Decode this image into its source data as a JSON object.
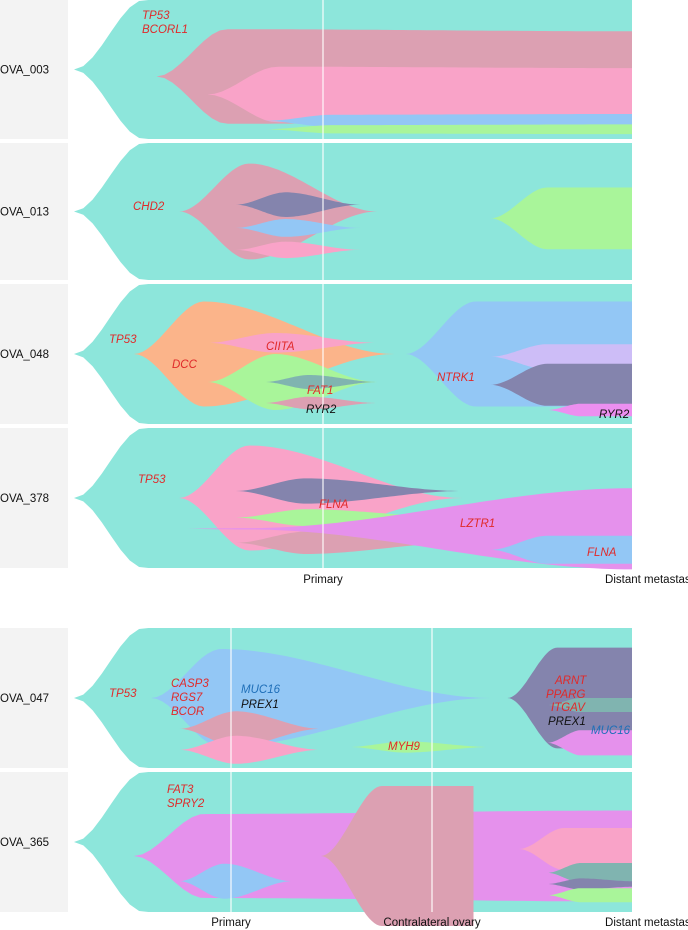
{
  "chart_data": {
    "type": "fishplot",
    "title": "",
    "groups": [
      {
        "timepoints": [
          "Primary",
          "Distant metastasis"
        ],
        "cases": [
          {
            "id": "OVA_003",
            "clones": [
              {
                "color": "#8de6db",
                "t": [
                  0.0,
                  1.0
                ],
                "v": [
                  100,
                  100
                ]
              },
              {
                "color": "#dca0b2",
                "t": [
                  0.16,
                  1.0
                ],
                "v": [
                  68,
                  65
                ]
              },
              {
                "color": "#f9a3c8",
                "t": [
                  0.25,
                  1.0
                ],
                "v": [
                  40,
                  38
                ]
              },
              {
                "color": "#93c7f5",
                "t": [
                  0.35,
                  1.0
                ],
                "v": [
                  9,
                  10
                ]
              },
              {
                "color": "#a9f59a",
                "t": [
                  0.35,
                  1.0
                ],
                "v": [
                  6,
                  7
                ]
              }
            ],
            "labels": [
              {
                "text": "TP53",
                "color": "#e02a2a"
              },
              {
                "text": "BCORL1",
                "color": "#e02a2a"
              }
            ]
          },
          {
            "id": "OVA_013",
            "clones": [
              {
                "color": "#8de6db",
                "t": [
                  0.0,
                  1.0
                ],
                "v": [
                  100,
                  100
                ]
              },
              {
                "color": "#dca0b2",
                "t": [
                  0.2,
                  0.55
                ],
                "v": [
                  70,
                  0
                ]
              },
              {
                "color": "#8484ad",
                "t": [
                  0.3,
                  0.52
                ],
                "v": [
                  18,
                  0
                ]
              },
              {
                "color": "#93c7f5",
                "t": [
                  0.3,
                  0.52
                ],
                "v": [
                  13,
                  0
                ]
              },
              {
                "color": "#f9a3c8",
                "t": [
                  0.3,
                  0.52
                ],
                "v": [
                  12,
                  0
                ]
              },
              {
                "color": "#a9f59a",
                "t": [
                  0.75,
                  1.0
                ],
                "v": [
                  0,
                  45
                ]
              }
            ],
            "labels": [
              {
                "text": "CHD2",
                "color": "#e02a2a"
              }
            ]
          },
          {
            "id": "OVA_048",
            "clones": [
              {
                "color": "#8de6db",
                "t": [
                  0.0,
                  1.0
                ],
                "v": [
                  100,
                  100
                ]
              },
              {
                "color": "#fbb48a",
                "t": [
                  0.12,
                  0.58
                ],
                "v": [
                  75,
                  0
                ]
              },
              {
                "color": "#f9a3c8",
                "t": [
                  0.25,
                  0.55
                ],
                "v": [
                  14,
                  0
                ]
              },
              {
                "color": "#a9f59a",
                "t": [
                  0.25,
                  0.55
                ],
                "v": [
                  40,
                  0
                ]
              },
              {
                "color": "#80b4b0",
                "t": [
                  0.35,
                  0.55
                ],
                "v": [
                  10,
                  0
                ]
              },
              {
                "color": "#dca0b2",
                "t": [
                  0.35,
                  0.55
                ],
                "v": [
                  9,
                  0
                ]
              },
              {
                "color": "#93c7f5",
                "t": [
                  0.6,
                  1.0
                ],
                "v": [
                  0,
                  75
                ]
              },
              {
                "color": "#cdbdf7",
                "t": [
                  0.75,
                  1.0
                ],
                "v": [
                  0,
                  18
                ]
              },
              {
                "color": "#8484ad",
                "t": [
                  0.75,
                  1.0
                ],
                "v": [
                  0,
                  30
                ]
              },
              {
                "color": "#ec8ff0",
                "t": [
                  0.85,
                  1.0
                ],
                "v": [
                  0,
                  9
                ]
              }
            ],
            "labels": [
              {
                "text": "TP53",
                "color": "#e02a2a"
              },
              {
                "text": "DCC",
                "color": "#e02a2a"
              },
              {
                "text": "CIITA",
                "color": "#e02a2a"
              },
              {
                "text": "FAT1",
                "color": "#e02a2a"
              },
              {
                "text": "RYR2",
                "color": "#111111"
              },
              {
                "text": "NTRK1",
                "color": "#e02a2a"
              },
              {
                "text": "RYR2",
                "color": "#111111"
              }
            ]
          },
          {
            "id": "OVA_378",
            "clones": [
              {
                "color": "#8de6db",
                "t": [
                  0.0,
                  1.0
                ],
                "v": [
                  100,
                  100
                ]
              },
              {
                "color": "#f9a3c8",
                "t": [
                  0.2,
                  0.7
                ],
                "v": [
                  75,
                  0
                ]
              },
              {
                "color": "#8484ad",
                "t": [
                  0.3,
                  0.7
                ],
                "v": [
                  18,
                  0
                ]
              },
              {
                "color": "#a9f59a",
                "t": [
                  0.3,
                  0.7
                ],
                "v": [
                  12,
                  0
                ]
              },
              {
                "color": "#dca0b2",
                "t": [
                  0.3,
                  0.7
                ],
                "v": [
                  16,
                  0
                ]
              },
              {
                "color": "#e591ec",
                "t": [
                  0.2,
                  1.0
                ],
                "v": [
                  1,
                  58
                ]
              },
              {
                "color": "#93c7f5",
                "t": [
                  0.75,
                  1.0
                ],
                "v": [
                  0,
                  20
                ]
              }
            ],
            "labels": [
              {
                "text": "TP53",
                "color": "#e02a2a"
              },
              {
                "text": "FLNA",
                "color": "#e02a2a"
              },
              {
                "text": "LZTR1",
                "color": "#e02a2a"
              },
              {
                "text": "FLNA",
                "color": "#e02a2a"
              }
            ]
          }
        ]
      },
      {
        "timepoints": [
          "Primary",
          "Contralateral ovary",
          "Distant metastasis"
        ],
        "cases": [
          {
            "id": "OVA_047",
            "clones": [
              {
                "color": "#8de6db",
                "t": [
                  0.0,
                  1.0
                ],
                "v": [
                  100,
                  100
                ]
              },
              {
                "color": "#93c7f5",
                "t": [
                  0.15,
                  0.75
                ],
                "v": [
                  70,
                  0
                ]
              },
              {
                "color": "#dca0b2",
                "t": [
                  0.2,
                  0.45
                ],
                "v": [
                  25,
                  0
                ]
              },
              {
                "color": "#f9a3c8",
                "t": [
                  0.2,
                  0.45
                ],
                "v": [
                  20,
                  0
                ]
              },
              {
                "color": "#a9f59a",
                "t": [
                  0.5,
                  0.75
                ],
                "v": [
                  0,
                  0
                ]
              },
              {
                "color": "#8484ad",
                "t": [
                  0.78,
                  1.0
                ],
                "v": [
                  0,
                  72
                ]
              },
              {
                "color": "#80b4b0",
                "t": [
                  0.85,
                  1.0
                ],
                "v": [
                  0,
                  10
                ]
              },
              {
                "color": "#e591ec",
                "t": [
                  0.85,
                  1.0
                ],
                "v": [
                  0,
                  18
                ]
              }
            ],
            "labels": [
              {
                "text": "TP53",
                "color": "#e02a2a"
              },
              {
                "text": "CASP3",
                "color": "#e02a2a"
              },
              {
                "text": "RGS7",
                "color": "#e02a2a"
              },
              {
                "text": "BCOR",
                "color": "#e02a2a"
              },
              {
                "text": "MUC16",
                "color": "#1f6fb8"
              },
              {
                "text": "PREX1",
                "color": "#111111"
              },
              {
                "text": "MYH9",
                "color": "#e02a2a"
              },
              {
                "text": "ARNT",
                "color": "#e02a2a"
              },
              {
                "text": "PPARG",
                "color": "#e02a2a"
              },
              {
                "text": "ITGAV",
                "color": "#e02a2a"
              },
              {
                "text": "PREX1",
                "color": "#111111"
              },
              {
                "text": "MUC16",
                "color": "#1f6fb8"
              }
            ]
          },
          {
            "id": "OVA_365",
            "clones": [
              {
                "color": "#8de6db",
                "t": [
                  0.0,
                  1.0
                ],
                "v": [
                  100,
                  100
                ]
              },
              {
                "color": "#e591ec",
                "t": [
                  0.12,
                  1.0
                ],
                "v": [
                  60,
                  65
                ]
              },
              {
                "color": "#93c7f5",
                "t": [
                  0.2,
                  0.4
                ],
                "v": [
                  25,
                  0
                ]
              },
              {
                "color": "#dca0b2",
                "t": [
                  0.45,
                  0.72
                ],
                "v": [
                  0,
                  100
                ]
              },
              {
                "color": "#f9a3c8",
                "t": [
                  0.8,
                  1.0
                ],
                "v": [
                  0,
                  30
                ]
              },
              {
                "color": "#80b4b0",
                "t": [
                  0.85,
                  1.0
                ],
                "v": [
                  0,
                  14
                ]
              },
              {
                "color": "#8484ad",
                "t": [
                  0.85,
                  1.0
                ],
                "v": [
                  0,
                  4
                ]
              },
              {
                "color": "#a9f59a",
                "t": [
                  0.85,
                  1.0
                ],
                "v": [
                  0,
                  10
                ]
              }
            ],
            "labels": [
              {
                "text": "FAT3",
                "color": "#e02a2a"
              },
              {
                "text": "SPRY2",
                "color": "#e02a2a"
              }
            ]
          }
        ]
      }
    ]
  }
}
